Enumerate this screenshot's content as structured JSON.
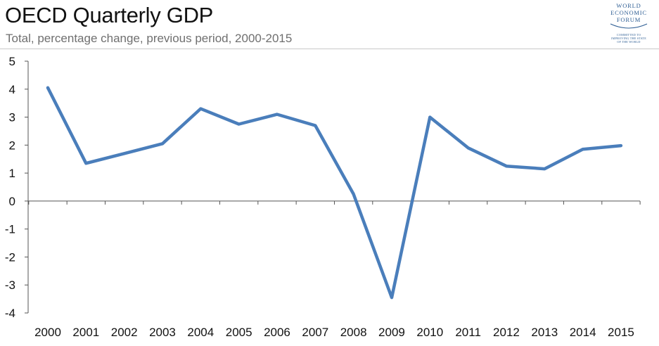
{
  "chart_data": {
    "type": "line",
    "title": "OECD Quarterly GDP",
    "subtitle": "Total, percentage change, previous period, 2000-2015",
    "xlabel": "",
    "ylabel": "",
    "x": [
      "2000",
      "2001",
      "2002",
      "2003",
      "2004",
      "2005",
      "2006",
      "2007",
      "2008",
      "2009",
      "2010",
      "2011",
      "2012",
      "2013",
      "2014",
      "2015"
    ],
    "series": [
      {
        "values": [
          4.05,
          1.35,
          1.7,
          2.05,
          3.3,
          2.75,
          3.1,
          2.7,
          0.25,
          -3.45,
          3.0,
          1.9,
          1.25,
          1.15,
          1.85,
          1.98
        ]
      }
    ],
    "ylim": [
      -4,
      5
    ],
    "yticks": [
      "5",
      "4",
      "3",
      "2",
      "1",
      "0",
      "-1",
      "-2",
      "-3",
      "-4"
    ],
    "grid": false,
    "line_color": "#4a7ebb",
    "axis_color": "#555555"
  },
  "logo": {
    "lines": [
      "WORLD",
      "ECONOMIC",
      "FORUM"
    ],
    "tagline": [
      "COMMITTED TO",
      "IMPROVING THE STATE",
      "OF THE WORLD"
    ],
    "color": "#2d5d93"
  }
}
